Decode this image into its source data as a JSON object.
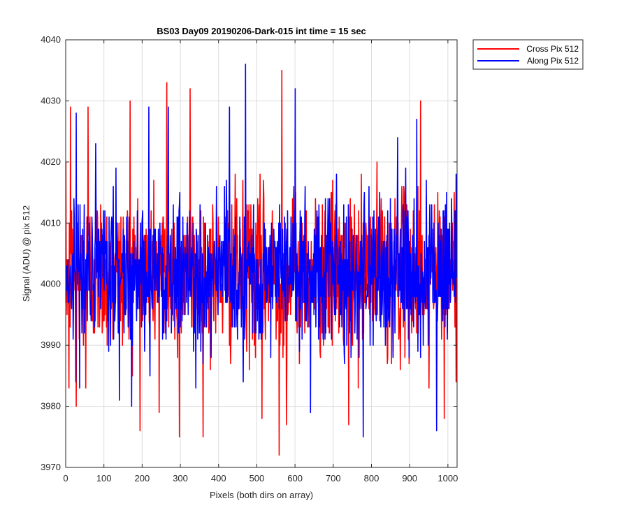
{
  "chart_data": {
    "type": "line",
    "title": "BS03 Day09 20190206-Dark-015 int time = 15 sec",
    "xlabel": "Pixels (both dirs on array)",
    "ylabel": "Signal (ADU) @ pix 512",
    "xlim": [
      0,
      1024
    ],
    "ylim": [
      3970,
      4040
    ],
    "xticks": [
      0,
      100,
      200,
      300,
      400,
      500,
      600,
      700,
      800,
      900,
      1000
    ],
    "yticks": [
      3970,
      3980,
      3990,
      4000,
      4010,
      4020,
      4030,
      4040
    ],
    "grid": true,
    "legend_position": "outside top-right",
    "series": [
      {
        "name": "Cross Pix 512",
        "color": "#ff0000",
        "n_points": 1024,
        "mean": 4002,
        "std": 6.5,
        "min": 3972,
        "max": 4035,
        "notable_points": [
          {
            "x": 8,
            "y": 3983
          },
          {
            "x": 12,
            "y": 4029
          },
          {
            "x": 27,
            "y": 3980
          },
          {
            "x": 52,
            "y": 3983
          },
          {
            "x": 58,
            "y": 4029
          },
          {
            "x": 168,
            "y": 4030
          },
          {
            "x": 244,
            "y": 3979
          },
          {
            "x": 264,
            "y": 4033
          },
          {
            "x": 297,
            "y": 3975
          },
          {
            "x": 325,
            "y": 4032
          },
          {
            "x": 513,
            "y": 3978
          },
          {
            "x": 558,
            "y": 3972
          },
          {
            "x": 565,
            "y": 4035
          },
          {
            "x": 577,
            "y": 3977
          },
          {
            "x": 740,
            "y": 3977
          },
          {
            "x": 928,
            "y": 4030
          },
          {
            "x": 950,
            "y": 3983
          },
          {
            "x": 990,
            "y": 3978
          }
        ]
      },
      {
        "name": "Along Pix 512",
        "color": "#0000ff",
        "n_points": 1024,
        "mean": 4002,
        "std": 6.0,
        "min": 3975,
        "max": 4036,
        "notable_points": [
          {
            "x": 27,
            "y": 4028
          },
          {
            "x": 140,
            "y": 3981
          },
          {
            "x": 217,
            "y": 4029
          },
          {
            "x": 268,
            "y": 4029
          },
          {
            "x": 340,
            "y": 3983
          },
          {
            "x": 428,
            "y": 4029
          },
          {
            "x": 470,
            "y": 4036
          },
          {
            "x": 600,
            "y": 4032
          },
          {
            "x": 640,
            "y": 3979
          },
          {
            "x": 778,
            "y": 3975
          },
          {
            "x": 868,
            "y": 4024
          },
          {
            "x": 918,
            "y": 4027
          },
          {
            "x": 970,
            "y": 3976
          }
        ]
      }
    ]
  }
}
